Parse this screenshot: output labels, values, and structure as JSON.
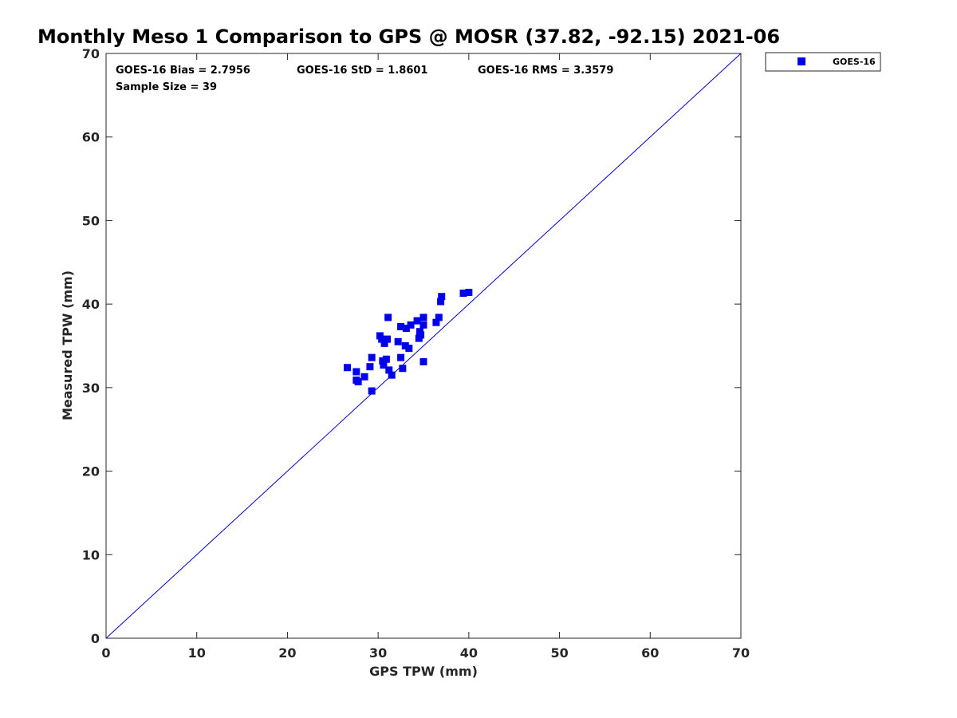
{
  "chart_data": {
    "type": "scatter",
    "title": "Monthly Meso 1 Comparison to GPS @ MOSR (37.82, -92.15) 2021-06",
    "xlabel": "GPS TPW (mm)",
    "ylabel": "Measured TPW (mm)",
    "xlim": [
      0,
      70
    ],
    "ylim": [
      0,
      70
    ],
    "xticks": [
      "0",
      "10",
      "20",
      "30",
      "40",
      "50",
      "60",
      "70"
    ],
    "yticks": [
      "0",
      "10",
      "20",
      "30",
      "40",
      "50",
      "60",
      "70"
    ],
    "reference_line": {
      "name": "1:1 line",
      "x": [
        0,
        70
      ],
      "y": [
        0,
        70
      ],
      "color": "#0000cc"
    },
    "stats": {
      "bias": "GOES-16 Bias = 2.7956",
      "std": "GOES-16 StD = 1.8601",
      "rms": "GOES-16 RMS = 3.3579",
      "sample": "Sample Size = 39"
    },
    "legend": {
      "position": "top-right",
      "entries": [
        "GOES-16"
      ]
    },
    "series": [
      {
        "name": "GOES-16",
        "color": "#0000ee",
        "marker": "square",
        "points": [
          [
            26.6,
            32.4
          ],
          [
            27.6,
            31.9
          ],
          [
            27.6,
            30.9
          ],
          [
            27.8,
            30.7
          ],
          [
            28.5,
            31.3
          ],
          [
            29.1,
            32.5
          ],
          [
            29.3,
            33.6
          ],
          [
            29.3,
            29.6
          ],
          [
            30.2,
            36.2
          ],
          [
            30.4,
            35.8
          ],
          [
            30.5,
            33.2
          ],
          [
            30.6,
            32.7
          ],
          [
            30.7,
            35.3
          ],
          [
            30.9,
            33.4
          ],
          [
            31.0,
            35.8
          ],
          [
            31.1,
            38.4
          ],
          [
            31.2,
            32.1
          ],
          [
            31.5,
            31.5
          ],
          [
            32.2,
            35.5
          ],
          [
            32.5,
            37.3
          ],
          [
            32.5,
            33.6
          ],
          [
            32.7,
            32.3
          ],
          [
            33.0,
            35.0
          ],
          [
            33.1,
            37.1
          ],
          [
            33.4,
            34.7
          ],
          [
            33.6,
            37.5
          ],
          [
            34.3,
            38.0
          ],
          [
            34.5,
            35.9
          ],
          [
            34.6,
            36.7
          ],
          [
            34.7,
            36.3
          ],
          [
            35.0,
            33.1
          ],
          [
            35.0,
            37.5
          ],
          [
            35.0,
            38.4
          ],
          [
            36.4,
            37.8
          ],
          [
            36.7,
            38.4
          ],
          [
            36.9,
            40.3
          ],
          [
            37.0,
            40.9
          ],
          [
            39.4,
            41.3
          ],
          [
            40.0,
            41.4
          ]
        ]
      }
    ]
  }
}
